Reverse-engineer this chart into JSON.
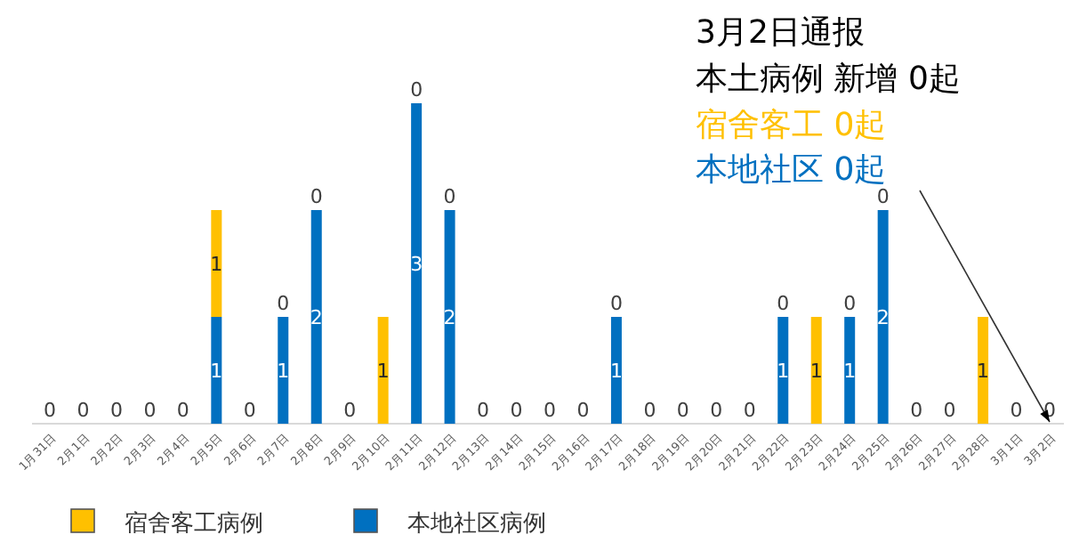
{
  "chart_data": {
    "type": "bar",
    "stacked": true,
    "legend": "bottom",
    "title": "3月2日通报",
    "subtitle": "本土病例 新增 0起",
    "annotations": [
      {
        "text": "宿舍客工 0起"
      },
      {
        "text": "本地社区 0起",
        "x": "3月2日",
        "y": 0
      }
    ],
    "categories": [
      "1月31日",
      "2月1日",
      "2月2日",
      "2月3日",
      "2月4日",
      "2月5日",
      "2月6日",
      "2月7日",
      "2月8日",
      "2月9日",
      "2月10日",
      "2月11日",
      "2月12日",
      "2月13日",
      "2月14日",
      "2月15日",
      "2月16日",
      "2月17日",
      "2月18日",
      "2月19日",
      "2月20日",
      "2月21日",
      "2月22日",
      "2月23日",
      "2月24日",
      "2月25日",
      "2月26日",
      "2月27日",
      "2月28日",
      "3月1日",
      "3月2日"
    ],
    "series": [
      {
        "name": "本地社区病例",
        "color": "#0070c0",
        "values": [
          0,
          0,
          0,
          0,
          0,
          1,
          0,
          1,
          2,
          0,
          0,
          3,
          2,
          0,
          0,
          0,
          0,
          1,
          0,
          0,
          0,
          0,
          1,
          0,
          1,
          2,
          0,
          0,
          0,
          0,
          0
        ],
        "value_labels": [
          "0",
          "0",
          "0",
          "0",
          "0",
          "1",
          "0",
          "1",
          "2",
          "0",
          null,
          "3",
          "2",
          "0",
          "0",
          "0",
          "0",
          "1",
          "0",
          "0",
          "0",
          "0",
          "1",
          null,
          "1",
          "2",
          "0",
          "0",
          null,
          "0",
          "0"
        ]
      },
      {
        "name": "宿舍客工病例",
        "color": "#ffc000",
        "values": [
          0,
          0,
          0,
          0,
          0,
          1,
          0,
          0,
          0,
          0,
          1,
          0,
          0,
          0,
          0,
          0,
          0,
          0,
          0,
          0,
          0,
          0,
          0,
          1,
          0,
          0,
          0,
          0,
          1,
          0,
          0
        ],
        "value_labels": [
          null,
          null,
          null,
          null,
          null,
          "1",
          null,
          "0",
          "0",
          null,
          "1",
          "0",
          "0",
          null,
          null,
          null,
          null,
          "0",
          null,
          null,
          null,
          null,
          "0",
          "1",
          "0",
          "0",
          null,
          null,
          "1",
          null,
          null
        ]
      }
    ]
  }
}
